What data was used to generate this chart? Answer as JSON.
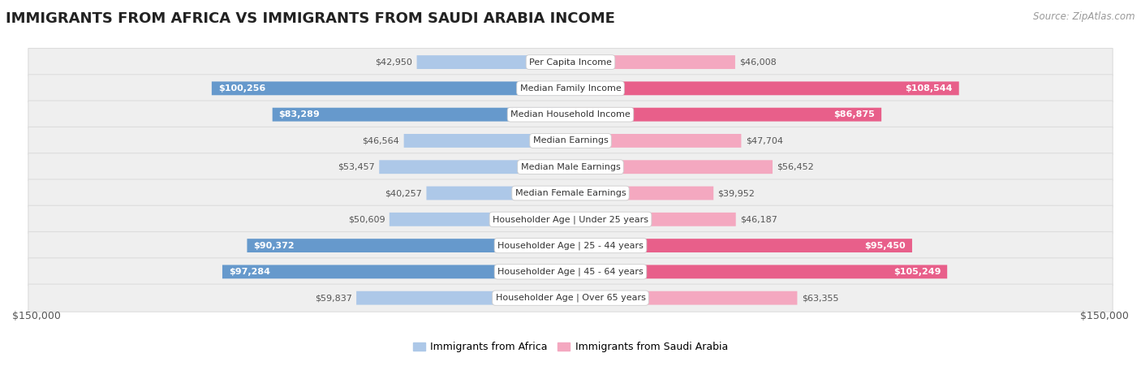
{
  "title": "IMMIGRANTS FROM AFRICA VS IMMIGRANTS FROM SAUDI ARABIA INCOME",
  "source": "Source: ZipAtlas.com",
  "categories": [
    "Per Capita Income",
    "Median Family Income",
    "Median Household Income",
    "Median Earnings",
    "Median Male Earnings",
    "Median Female Earnings",
    "Householder Age | Under 25 years",
    "Householder Age | 25 - 44 years",
    "Householder Age | 45 - 64 years",
    "Householder Age | Over 65 years"
  ],
  "africa_values": [
    42950,
    100256,
    83289,
    46564,
    53457,
    40257,
    50609,
    90372,
    97284,
    59837
  ],
  "saudi_values": [
    46008,
    108544,
    86875,
    47704,
    56452,
    39952,
    46187,
    95450,
    105249,
    63355
  ],
  "africa_color_light": "#adc8e8",
  "africa_color_dark": "#6699cc",
  "saudi_color_light": "#f4a8c0",
  "saudi_color_dark": "#e85f8a",
  "africa_label_color_dark": "#555555",
  "africa_label_color_light": "#ffffff",
  "saudi_label_color_dark": "#555555",
  "saudi_label_color_light": "#ffffff",
  "max_value": 150000,
  "background_color": "#ffffff",
  "row_bg_color": "#efefef",
  "row_border_color": "#dddddd",
  "legend_africa": "Immigrants from Africa",
  "legend_saudi": "Immigrants from Saudi Arabia",
  "xlabel_left": "$150,000",
  "xlabel_right": "$150,000",
  "africa_label_threshold": 72000,
  "saudi_label_threshold": 72000,
  "title_fontsize": 13,
  "source_fontsize": 8.5,
  "bar_fontsize": 8,
  "category_fontsize": 8,
  "legend_fontsize": 9,
  "axis_fontsize": 9
}
